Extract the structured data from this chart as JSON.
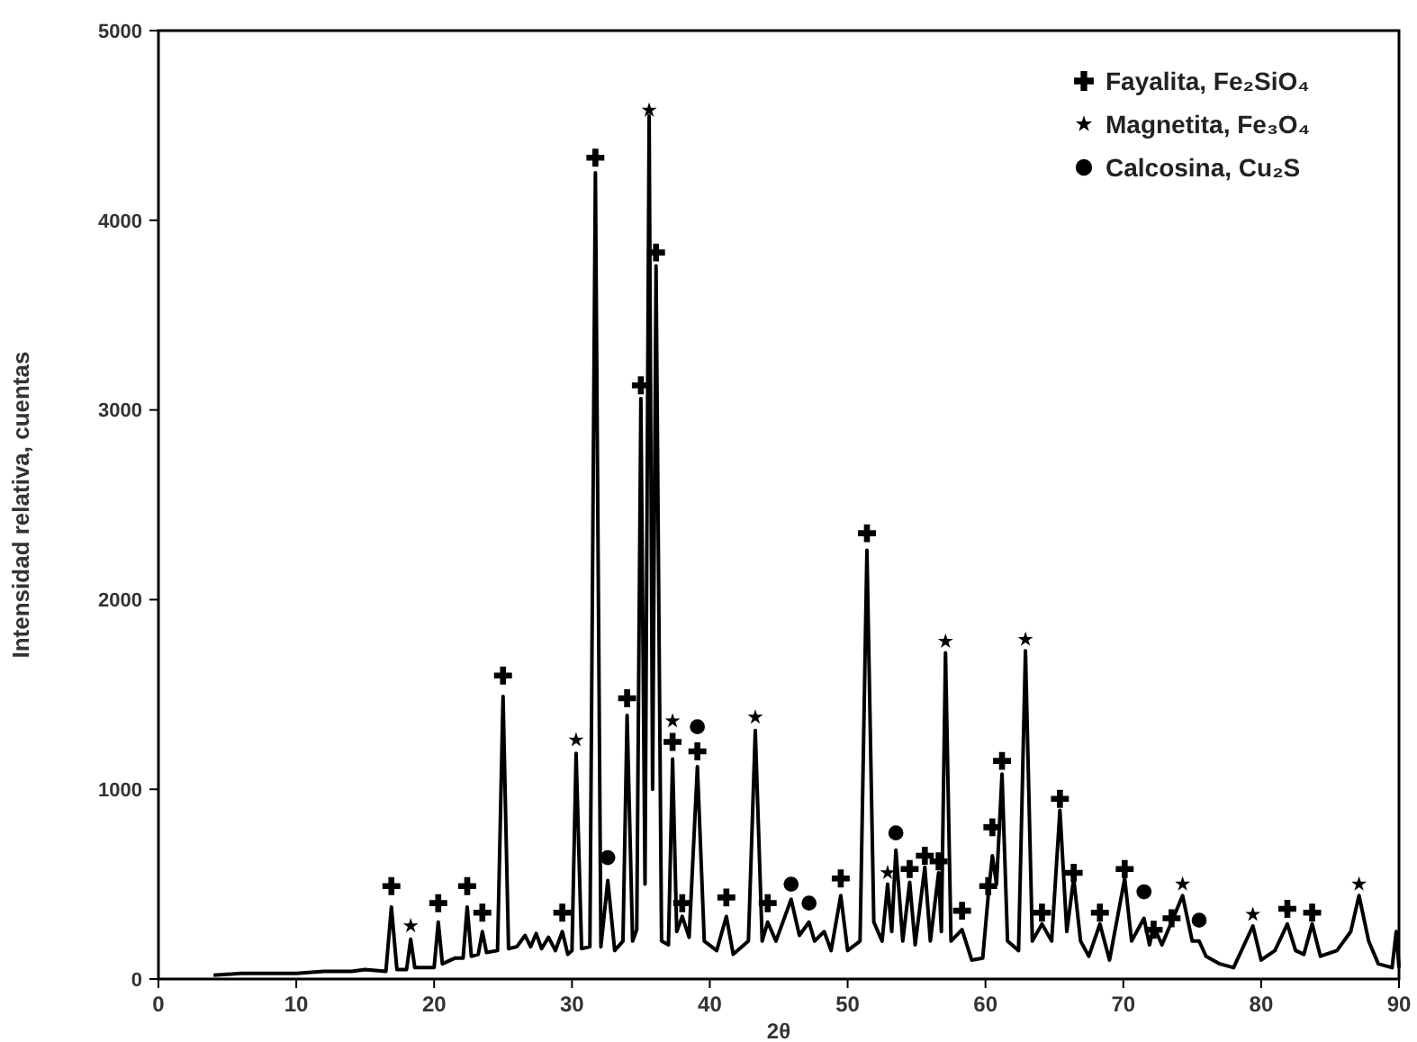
{
  "chart_data": {
    "type": "line",
    "xlabel": "2θ",
    "ylabel": "Intensidad relativa, cuentas",
    "xlim": [
      0,
      90
    ],
    "ylim": [
      0,
      5000
    ],
    "xticks": [
      0,
      10,
      20,
      30,
      40,
      50,
      60,
      70,
      80,
      90
    ],
    "yticks": [
      0,
      1000,
      2000,
      3000,
      4000,
      5000
    ],
    "grid": false,
    "legend": "top right",
    "line_style": "solid",
    "series": [
      {
        "color": "#000000",
        "x": [
          4,
          6,
          8,
          10,
          12,
          14,
          15,
          16.5,
          16.9,
          17.3,
          18.0,
          18.3,
          18.6,
          20.0,
          20.3,
          20.6,
          21.5,
          22.1,
          22.4,
          22.7,
          23.2,
          23.5,
          23.8,
          24.6,
          25.0,
          25.4,
          26.0,
          26.6,
          27.0,
          27.4,
          27.8,
          28.3,
          28.8,
          29.3,
          29.7,
          30.0,
          30.3,
          30.7,
          31.3,
          31.7,
          32.1,
          32.6,
          33.1,
          33.7,
          34.0,
          34.4,
          34.7,
          35.0,
          35.3,
          35.6,
          35.85,
          36.1,
          36.5,
          37.0,
          37.3,
          37.6,
          38.0,
          38.5,
          39.1,
          39.6,
          40.5,
          41.2,
          41.7,
          42.8,
          43.3,
          43.8,
          44.2,
          44.8,
          45.9,
          46.5,
          47.2,
          47.6,
          48.3,
          48.8,
          49.5,
          50.0,
          50.9,
          51.4,
          51.9,
          52.5,
          52.9,
          53.2,
          53.5,
          54.0,
          54.5,
          54.9,
          55.6,
          56.0,
          56.6,
          56.8,
          57.1,
          57.5,
          58.3,
          59.0,
          59.8,
          60.2,
          60.5,
          60.8,
          61.2,
          61.6,
          62.4,
          62.9,
          63.4,
          64.1,
          64.8,
          65.4,
          65.9,
          66.4,
          66.9,
          67.5,
          68.3,
          69.0,
          70.1,
          70.6,
          71.5,
          71.9,
          72.2,
          72.8,
          73.5,
          74.3,
          75.0,
          75.5,
          76.0,
          77,
          78,
          79.4,
          80.0,
          81.0,
          81.9,
          82.5,
          83.1,
          83.7,
          84.3,
          85.5,
          86.5,
          87.1,
          87.8,
          88.5,
          89.5,
          89.8,
          90
        ],
        "values": [
          20,
          30,
          30,
          30,
          40,
          40,
          50,
          40,
          380,
          50,
          50,
          210,
          60,
          60,
          300,
          80,
          110,
          110,
          380,
          120,
          130,
          250,
          140,
          150,
          1490,
          160,
          170,
          230,
          170,
          240,
          160,
          220,
          150,
          250,
          130,
          150,
          1190,
          160,
          170,
          4250,
          170,
          520,
          150,
          200,
          1390,
          200,
          260,
          3060,
          500,
          4550,
          1000,
          3760,
          200,
          180,
          1160,
          250,
          330,
          220,
          1120,
          200,
          150,
          330,
          130,
          200,
          1310,
          200,
          300,
          200,
          420,
          230,
          300,
          200,
          250,
          150,
          440,
          150,
          200,
          2260,
          300,
          200,
          500,
          250,
          680,
          200,
          510,
          180,
          590,
          200,
          560,
          250,
          1720,
          200,
          260,
          100,
          110,
          440,
          650,
          500,
          1080,
          200,
          150,
          1730,
          200,
          290,
          200,
          890,
          250,
          530,
          200,
          120,
          290,
          100,
          530,
          200,
          320,
          180,
          280,
          180,
          300,
          440,
          200,
          200,
          120,
          80,
          60,
          280,
          100,
          150,
          290,
          150,
          130,
          290,
          120,
          150,
          250,
          440,
          200,
          80,
          60,
          250,
          60
        ]
      },
      {
        "type": "scatter",
        "name": "Fayalita, Fe₂SiO₄",
        "color": "#000000",
        "marker": "cross",
        "x": [
          16.9,
          20.3,
          22.4,
          23.5,
          25.0,
          29.3,
          31.7,
          34.0,
          35.0,
          36.1,
          37.3,
          38.0,
          39.1,
          41.2,
          44.2,
          49.5,
          51.4,
          54.5,
          55.6,
          56.6,
          58.3,
          60.2,
          60.5,
          61.2,
          64.1,
          65.4,
          66.4,
          68.3,
          70.1,
          72.2,
          73.5,
          81.9,
          83.7
        ],
        "values": [
          490,
          400,
          490,
          350,
          1600,
          350,
          4330,
          1480,
          3130,
          3830,
          1250,
          400,
          1200,
          430,
          400,
          530,
          2350,
          580,
          650,
          620,
          360,
          490,
          800,
          1150,
          350,
          950,
          560,
          350,
          580,
          260,
          320,
          370,
          350
        ]
      },
      {
        "type": "scatter",
        "name": "Magnetita, Fe₃O₄",
        "color": "#000000",
        "marker": "star",
        "x": [
          18.3,
          30.3,
          35.6,
          37.3,
          43.3,
          52.9,
          57.1,
          62.9,
          74.3,
          79.4,
          87.1
        ],
        "values": [
          280,
          1260,
          4580,
          1360,
          1380,
          560,
          1780,
          1790,
          500,
          340,
          500
        ]
      },
      {
        "type": "scatter",
        "name": "Calcosina, Cu₂S",
        "color": "#000000",
        "marker": "circle",
        "x": [
          32.6,
          39.1,
          45.9,
          47.2,
          53.5,
          71.5,
          75.5
        ],
        "values": [
          640,
          1330,
          500,
          400,
          770,
          460,
          310
        ]
      }
    ]
  }
}
